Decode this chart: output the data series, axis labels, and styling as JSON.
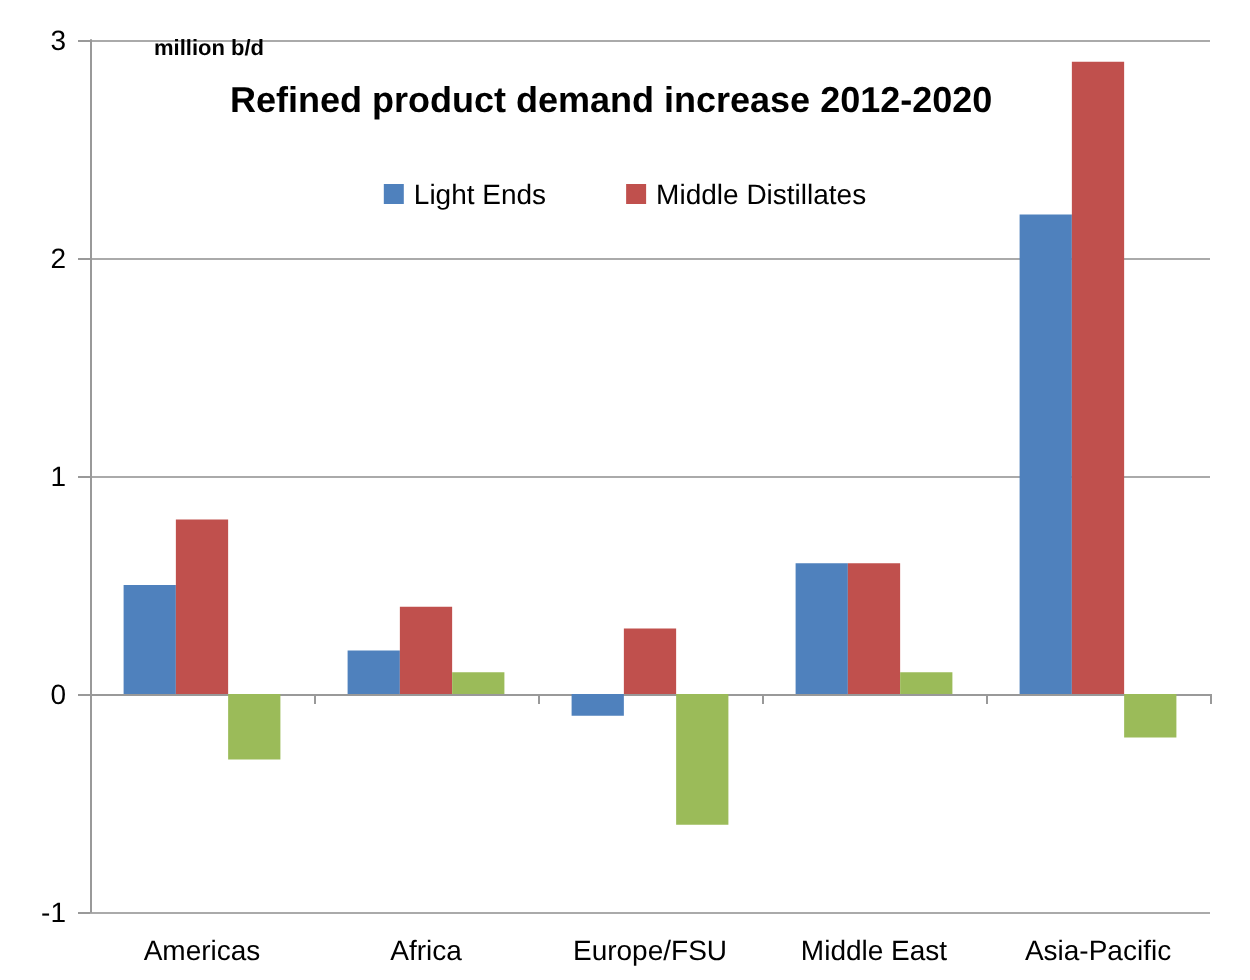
{
  "chart_data": {
    "type": "bar",
    "title": "Refined product demand increase 2012-2020",
    "ylabel": "million b/d",
    "categories": [
      "Americas",
      "Africa",
      "Europe/FSU",
      "Middle East",
      "Asia-Pacific"
    ],
    "series": [
      {
        "name": "Light Ends",
        "color": "#4f81bd",
        "values": [
          0.5,
          0.2,
          -0.1,
          0.6,
          2.2
        ]
      },
      {
        "name": "Middle Distillates",
        "color": "#c0504d",
        "values": [
          0.8,
          0.4,
          0.3,
          0.6,
          2.9
        ]
      },
      {
        "color": "#9bbb59",
        "values": [
          -0.3,
          0.1,
          -0.6,
          0.1,
          -0.2
        ]
      }
    ],
    "ylim": [
      -1,
      3
    ],
    "yticks": [
      -1,
      0,
      1,
      2,
      3
    ],
    "grid": "y",
    "legend": "top"
  }
}
